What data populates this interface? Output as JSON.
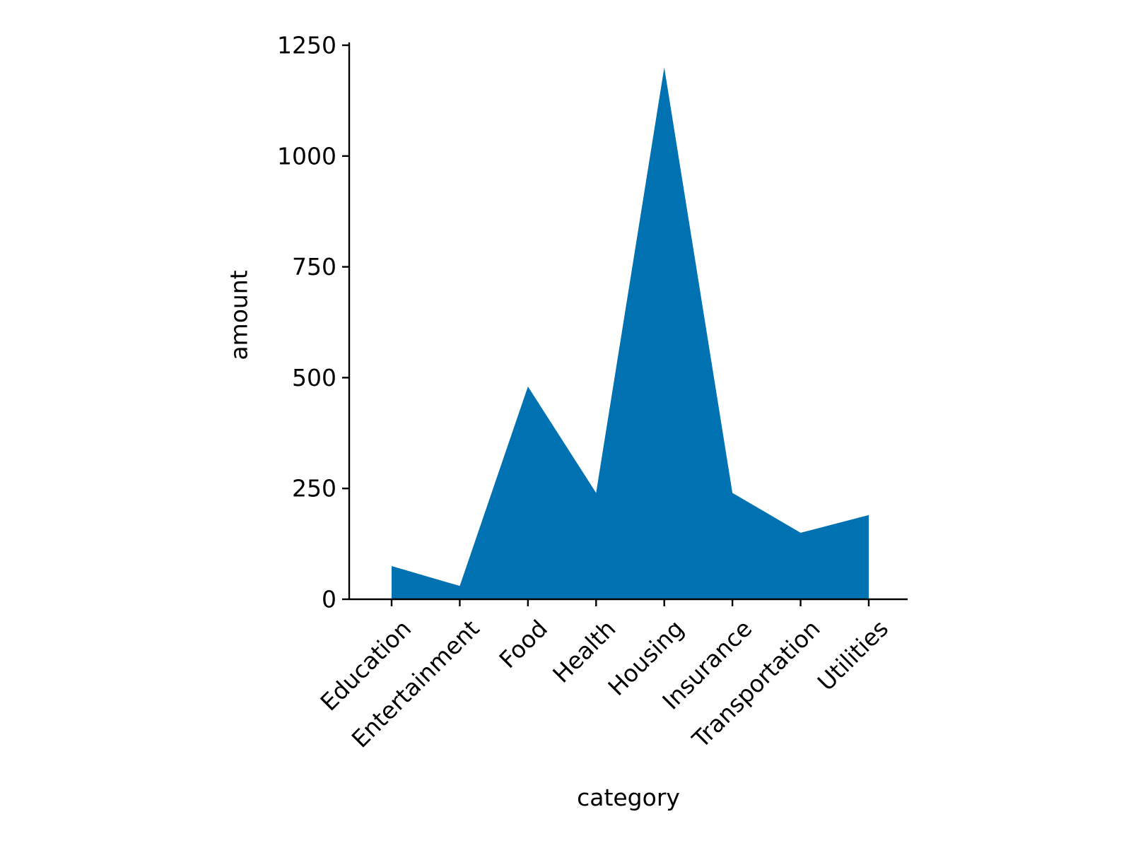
{
  "chart_data": {
    "type": "area",
    "title": "",
    "xlabel": "category",
    "ylabel": "amount",
    "categories": [
      "Education",
      "Entertainment",
      "Food",
      "Health",
      "Housing",
      "Insurance",
      "Transportation",
      "Utilities"
    ],
    "series": [
      {
        "values": [
          75,
          30,
          480,
          240,
          1200,
          240,
          150,
          190
        ],
        "color": "#0072b2"
      }
    ],
    "ylim": [
      0,
      1250
    ],
    "yticks": [
      0,
      250,
      500,
      750,
      1000,
      1250
    ],
    "grid": false,
    "legend": "none",
    "spines": [
      "left",
      "bottom"
    ],
    "xtick_rotation": 45
  }
}
